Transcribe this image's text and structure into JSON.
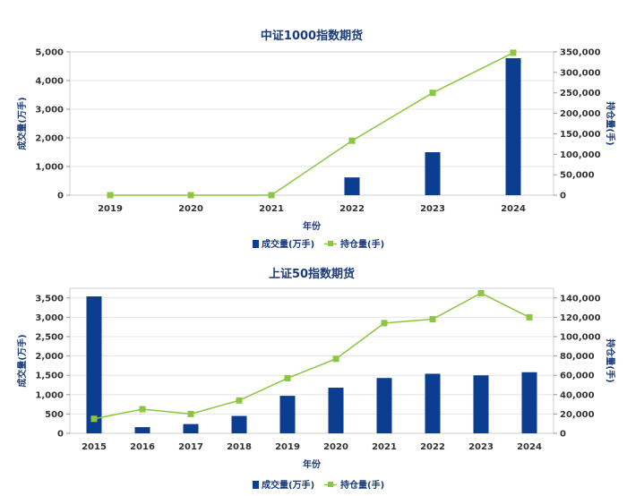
{
  "chart_data": [
    {
      "type": "bar",
      "title": "中证1000指数期货",
      "xlabel": "年份",
      "ylabel": "成交量(万手)",
      "y2label": "持仓量(手)",
      "categories": [
        "2019",
        "2020",
        "2021",
        "2022",
        "2023",
        "2024"
      ],
      "ylim": [
        0,
        5000
      ],
      "yticks": [
        0,
        1000,
        2000,
        3000,
        4000,
        5000
      ],
      "y2lim": [
        0,
        350000
      ],
      "y2ticks": [
        0,
        50000,
        100000,
        150000,
        200000,
        250000,
        300000,
        350000
      ],
      "series": [
        {
          "name": "成交量(万手)",
          "type": "bar",
          "axis": "left",
          "color": "#0b3d91",
          "values": [
            0,
            0,
            0,
            620,
            1500,
            4780
          ]
        },
        {
          "name": "持仓量(手)",
          "type": "line",
          "axis": "right",
          "color": "#8cc63f",
          "values": [
            0,
            0,
            0,
            133000,
            250000,
            348000
          ]
        }
      ],
      "grid": true,
      "legend": "bottom"
    },
    {
      "type": "bar",
      "title": "上证50指数期货",
      "xlabel": "年份",
      "ylabel": "成交量(万手)",
      "y2label": "持仓量(手)",
      "categories": [
        "2015",
        "2016",
        "2017",
        "2018",
        "2019",
        "2020",
        "2021",
        "2022",
        "2023",
        "2024"
      ],
      "ylim": [
        0,
        3750
      ],
      "yticks": [
        0,
        500,
        1000,
        1500,
        2000,
        2500,
        3000,
        3500
      ],
      "y2lim": [
        0,
        150000
      ],
      "y2ticks": [
        0,
        20000,
        40000,
        60000,
        80000,
        100000,
        120000,
        140000
      ],
      "series": [
        {
          "name": "成交量(万手)",
          "type": "bar",
          "axis": "left",
          "color": "#0b3d91",
          "values": [
            3540,
            160,
            240,
            450,
            970,
            1180,
            1430,
            1540,
            1500,
            1580
          ]
        },
        {
          "name": "持仓量(手)",
          "type": "line",
          "axis": "right",
          "color": "#8cc63f",
          "values": [
            15000,
            25000,
            20000,
            34000,
            57000,
            77000,
            114000,
            118000,
            145000,
            120000
          ]
        }
      ],
      "grid": true,
      "legend": "bottom"
    }
  ]
}
